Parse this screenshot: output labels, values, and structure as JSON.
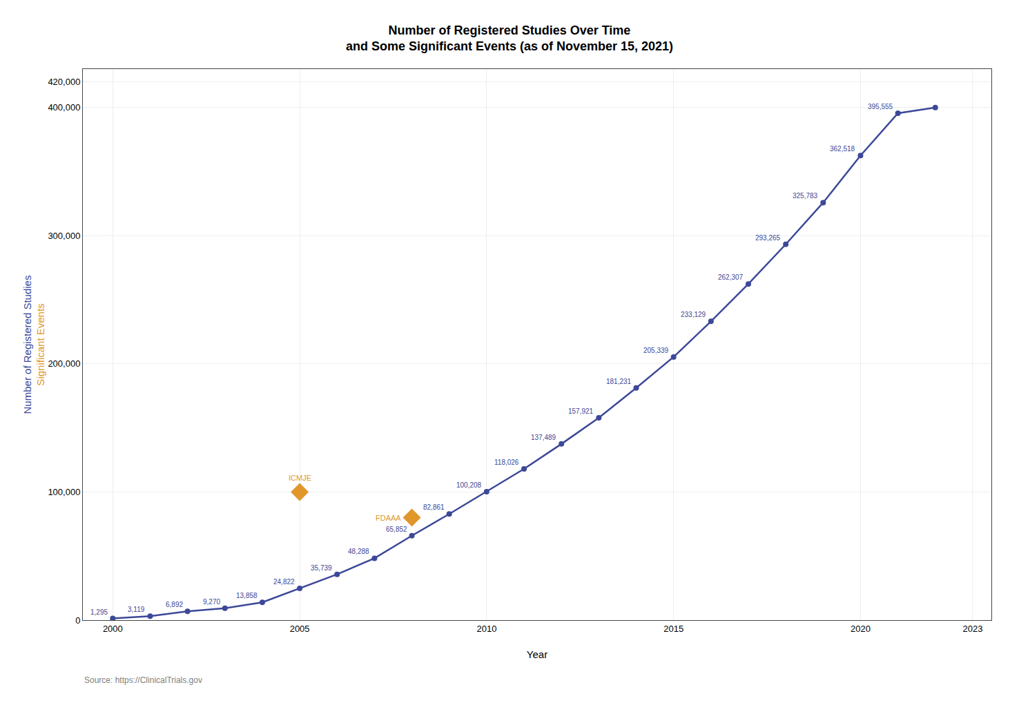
{
  "chart_data": {
    "type": "line",
    "title": "Number of Registered Studies Over Time",
    "subtitle": "and Some Significant Events (as of November 15, 2021)",
    "xlabel": "Year",
    "ylabel": [
      {
        "text": "Number of Registered Studies",
        "color": "#3c4898"
      },
      {
        "text": "Significant Events",
        "color": "#e0962a"
      }
    ],
    "source": "Source: https://ClinicalTrials.gov",
    "x": [
      2000,
      2001,
      2002,
      2003,
      2004,
      2005,
      2006,
      2007,
      2008,
      2009,
      2010,
      2011,
      2012,
      2013,
      2014,
      2015,
      2016,
      2017,
      2018,
      2019,
      2020,
      2021,
      2022
    ],
    "values": [
      1295,
      3119,
      6892,
      9270,
      13858,
      24822,
      35739,
      48288,
      65852,
      82861,
      100208,
      118026,
      137489,
      157921,
      181231,
      205339,
      233129,
      262307,
      293265,
      325783,
      362518,
      395555,
      400000
    ],
    "value_labels": [
      "1,295",
      "3,119",
      "6,892",
      "9,270",
      "13,858",
      "24,822",
      "35,739",
      "48,288",
      "65,852",
      "82,861",
      "100,208",
      "118,026",
      "137,489",
      "157,921",
      "181,231",
      "205,339",
      "233,129",
      "262,307",
      "293,265",
      "325,783",
      "362,518",
      "395,555",
      null
    ],
    "data_labels": true,
    "color": "#3c4898",
    "marker": "circle",
    "events": {
      "x": [
        2005,
        2008
      ],
      "values": [
        100000,
        80000
      ],
      "labels": [
        "ICMJE",
        "FDAAA"
      ],
      "color": "#e0962a",
      "marker": "diamond"
    },
    "xlim": [
      1999.2,
      2023.5
    ],
    "xticks": [
      2000,
      2005,
      2010,
      2015,
      2020,
      2023
    ],
    "ylim": [
      0,
      430000
    ],
    "yticks": [
      0,
      {
        "value": 100000,
        "label": "100,000"
      },
      {
        "value": 200000,
        "label": "200,000"
      },
      {
        "value": 300000,
        "label": "300,000"
      },
      {
        "value": 400000,
        "label": "400,000"
      },
      {
        "value": 420000,
        "label": "420,000"
      }
    ],
    "grid": true
  }
}
